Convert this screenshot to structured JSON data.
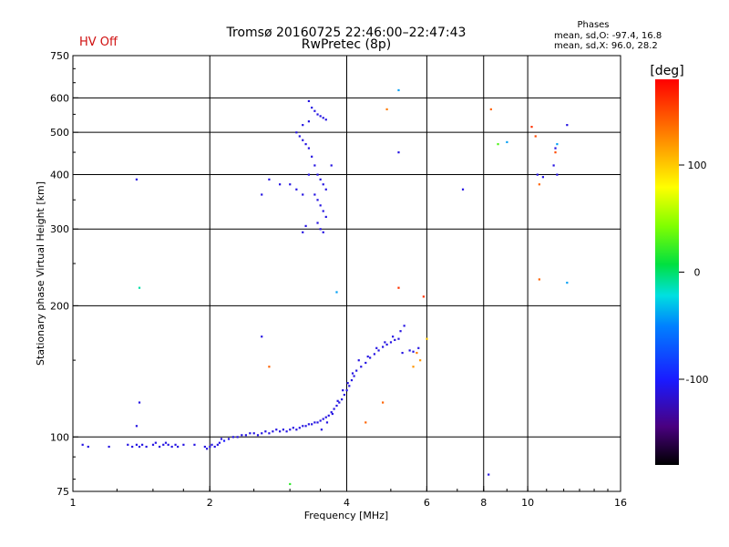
{
  "status_text": "HV Off",
  "chart_data": {
    "type": "scatter",
    "title": "Tromsø 20160725 22:46:00–22:47:43",
    "subtitle": "RwPretec (8p)",
    "xlabel": "Frequency [MHz]",
    "ylabel": "Stationary phase Virtual Height [km]",
    "x_scale": "log2",
    "y_scale": "log",
    "xlim": [
      1,
      16
    ],
    "ylim": [
      75,
      750
    ],
    "x_ticks": [
      1,
      2,
      4,
      6,
      8,
      10,
      16
    ],
    "x_tick_labels": [
      "1",
      "2",
      "4",
      "6",
      "8",
      "10",
      "16"
    ],
    "x_grid": [
      2,
      4,
      6,
      8,
      10
    ],
    "y_ticks": [
      75,
      100,
      200,
      300,
      400,
      500,
      600,
      750
    ],
    "y_tick_labels": [
      "75",
      "100",
      "200",
      "300",
      "400",
      "500",
      "600",
      "750"
    ],
    "y_grid": [
      100,
      200,
      300,
      400,
      500,
      600
    ],
    "grid": true,
    "info_title": "Phases",
    "info_lines": [
      "mean, sd,O: -97.4, 16.8",
      "mean, sd,X:  96.0, 28.2"
    ],
    "colorbar": {
      "label": "[deg]",
      "range": [
        -180,
        180
      ],
      "ticks": [
        100,
        0,
        -100
      ],
      "tick_labels": [
        "100",
        "0",
        "-100"
      ]
    },
    "points": [
      [
        1.05,
        96,
        -110
      ],
      [
        1.08,
        95,
        -110
      ],
      [
        1.2,
        95,
        -110
      ],
      [
        1.32,
        96,
        -110
      ],
      [
        1.35,
        95,
        -110
      ],
      [
        1.38,
        96,
        -110
      ],
      [
        1.4,
        95,
        -110
      ],
      [
        1.42,
        96,
        -110
      ],
      [
        1.45,
        95,
        -110
      ],
      [
        1.5,
        96,
        -110
      ],
      [
        1.52,
        97,
        -110
      ],
      [
        1.55,
        95,
        -110
      ],
      [
        1.58,
        96,
        -110
      ],
      [
        1.6,
        97,
        -110
      ],
      [
        1.62,
        96,
        -110
      ],
      [
        1.65,
        95,
        -110
      ],
      [
        1.68,
        96,
        -110
      ],
      [
        1.7,
        95,
        -110
      ],
      [
        1.75,
        96,
        -110
      ],
      [
        1.85,
        96,
        -110
      ],
      [
        1.95,
        95,
        -110
      ],
      [
        1.97,
        94,
        -110
      ],
      [
        2.0,
        95,
        -110
      ],
      [
        2.02,
        96,
        -110
      ],
      [
        2.05,
        95,
        -110
      ],
      [
        2.08,
        96,
        -110
      ],
      [
        2.1,
        97,
        -110
      ],
      [
        2.12,
        99,
        -110
      ],
      [
        2.15,
        98,
        -100
      ],
      [
        2.2,
        99,
        -110
      ],
      [
        2.25,
        100,
        -110
      ],
      [
        2.3,
        100,
        -110
      ],
      [
        2.35,
        101,
        -110
      ],
      [
        2.4,
        101,
        -110
      ],
      [
        2.45,
        102,
        -110
      ],
      [
        2.5,
        102,
        -110
      ],
      [
        2.55,
        101,
        -110
      ],
      [
        2.6,
        102,
        -110
      ],
      [
        2.65,
        103,
        -110
      ],
      [
        2.7,
        102,
        -110
      ],
      [
        2.75,
        103,
        -110
      ],
      [
        2.8,
        104,
        -110
      ],
      [
        2.85,
        103,
        -110
      ],
      [
        2.9,
        104,
        -110
      ],
      [
        2.95,
        103,
        -110
      ],
      [
        3.0,
        104,
        -110
      ],
      [
        3.05,
        105,
        -110
      ],
      [
        3.1,
        104,
        -110
      ],
      [
        3.15,
        105,
        -110
      ],
      [
        3.2,
        106,
        -110
      ],
      [
        3.25,
        106,
        -110
      ],
      [
        3.3,
        107,
        -110
      ],
      [
        3.35,
        107,
        -110
      ],
      [
        3.4,
        108,
        -110
      ],
      [
        3.45,
        108,
        -110
      ],
      [
        3.5,
        109,
        -110
      ],
      [
        3.55,
        110,
        -110
      ],
      [
        3.6,
        111,
        -110
      ],
      [
        3.65,
        112,
        -110
      ],
      [
        3.7,
        114,
        -110
      ],
      [
        3.75,
        116,
        -110
      ],
      [
        3.8,
        118,
        -110
      ],
      [
        3.85,
        120,
        -110
      ],
      [
        3.9,
        122,
        -110
      ],
      [
        3.95,
        125,
        -110
      ],
      [
        4.0,
        128,
        -110
      ],
      [
        4.05,
        131,
        -110
      ],
      [
        4.1,
        135,
        -110
      ],
      [
        4.15,
        138,
        -110
      ],
      [
        4.2,
        142,
        -110
      ],
      [
        4.3,
        145,
        -110
      ],
      [
        4.4,
        148,
        -110
      ],
      [
        4.5,
        152,
        -110
      ],
      [
        4.6,
        155,
        -110
      ],
      [
        4.7,
        158,
        -110
      ],
      [
        4.8,
        161,
        -110
      ],
      [
        4.9,
        163,
        -110
      ],
      [
        5.0,
        165,
        -110
      ],
      [
        5.1,
        167,
        -110
      ],
      [
        5.2,
        168,
        -110
      ],
      [
        5.3,
        156,
        -110
      ],
      [
        5.5,
        158,
        -110
      ],
      [
        5.6,
        157,
        -110
      ],
      [
        5.7,
        156,
        130
      ],
      [
        5.75,
        160,
        -110
      ],
      [
        3.52,
        104,
        -110
      ],
      [
        3.62,
        108,
        -110
      ],
      [
        3.72,
        113,
        -110
      ],
      [
        3.82,
        121,
        -110
      ],
      [
        3.92,
        128,
        -110
      ],
      [
        4.02,
        133,
        -110
      ],
      [
        4.12,
        140,
        -110
      ],
      [
        4.25,
        150,
        -110
      ],
      [
        4.45,
        153,
        -110
      ],
      [
        4.65,
        160,
        -110
      ],
      [
        4.85,
        165,
        -110
      ],
      [
        5.05,
        170,
        -110
      ],
      [
        5.25,
        175,
        -110
      ],
      [
        5.35,
        180,
        -110
      ],
      [
        3.3,
        590,
        -110
      ],
      [
        3.35,
        570,
        -110
      ],
      [
        3.4,
        560,
        -110
      ],
      [
        3.45,
        550,
        -110
      ],
      [
        3.5,
        545,
        -110
      ],
      [
        3.55,
        540,
        -110
      ],
      [
        3.6,
        535,
        -110
      ],
      [
        3.2,
        520,
        -110
      ],
      [
        3.1,
        500,
        -110
      ],
      [
        3.15,
        490,
        -110
      ],
      [
        3.2,
        480,
        -110
      ],
      [
        3.25,
        470,
        -110
      ],
      [
        3.3,
        460,
        -110
      ],
      [
        3.35,
        440,
        -110
      ],
      [
        3.4,
        420,
        -110
      ],
      [
        3.45,
        400,
        -110
      ],
      [
        3.5,
        390,
        -110
      ],
      [
        3.55,
        380,
        -110
      ],
      [
        3.6,
        370,
        -110
      ],
      [
        3.4,
        360,
        -110
      ],
      [
        3.45,
        350,
        -110
      ],
      [
        3.5,
        340,
        -110
      ],
      [
        3.55,
        330,
        -110
      ],
      [
        3.6,
        320,
        -110
      ],
      [
        3.45,
        310,
        -110
      ],
      [
        3.5,
        300,
        -110
      ],
      [
        3.55,
        295,
        -110
      ],
      [
        3.2,
        295,
        -110
      ],
      [
        3.25,
        305,
        -110
      ],
      [
        3.0,
        380,
        -110
      ],
      [
        3.1,
        370,
        -110
      ],
      [
        3.2,
        360,
        -110
      ],
      [
        3.3,
        400,
        -110
      ],
      [
        2.7,
        390,
        -110
      ],
      [
        2.6,
        360,
        -110
      ],
      [
        2.85,
        380,
        -110
      ],
      [
        3.7,
        420,
        -110
      ],
      [
        3.3,
        530,
        -110
      ],
      [
        1.38,
        390,
        -110
      ],
      [
        1.4,
        120,
        -110
      ],
      [
        1.38,
        106,
        -110
      ],
      [
        1.4,
        220,
        -10
      ],
      [
        2.6,
        170,
        -110
      ],
      [
        2.7,
        145,
        140
      ],
      [
        3.0,
        78,
        20
      ],
      [
        3.8,
        215,
        -40
      ],
      [
        4.4,
        108,
        140
      ],
      [
        4.8,
        120,
        140
      ],
      [
        5.2,
        450,
        -110
      ],
      [
        5.2,
        625,
        -40
      ],
      [
        5.2,
        220,
        160
      ],
      [
        5.9,
        210,
        160
      ],
      [
        4.9,
        565,
        130
      ],
      [
        6.0,
        168,
        100
      ],
      [
        5.6,
        145,
        120
      ],
      [
        5.8,
        150,
        120
      ],
      [
        7.2,
        370,
        -110
      ],
      [
        8.2,
        82,
        -110
      ],
      [
        8.3,
        565,
        140
      ],
      [
        8.6,
        470,
        30
      ],
      [
        9.0,
        475,
        -40
      ],
      [
        10.2,
        515,
        160
      ],
      [
        10.4,
        490,
        150
      ],
      [
        10.5,
        400,
        -110
      ],
      [
        10.6,
        380,
        140
      ],
      [
        10.8,
        395,
        -110
      ],
      [
        11.5,
        450,
        150
      ],
      [
        11.6,
        470,
        -40
      ],
      [
        11.4,
        420,
        -110
      ],
      [
        11.6,
        400,
        -110
      ],
      [
        12.2,
        520,
        -110
      ],
      [
        11.5,
        460,
        -110
      ],
      [
        10.6,
        230,
        140
      ],
      [
        12.2,
        226,
        -40
      ]
    ]
  }
}
